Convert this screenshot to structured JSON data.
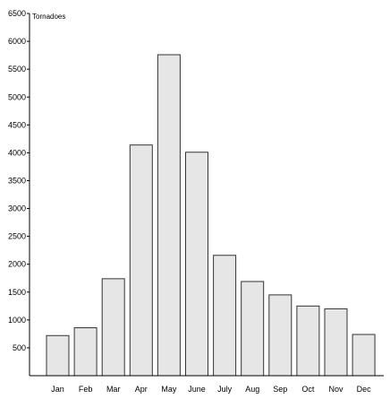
{
  "chart_data": {
    "type": "bar",
    "ylabel": "Tornadoes",
    "xlabel": "",
    "categories": [
      "Jan",
      "Feb",
      "Mar",
      "Apr",
      "May",
      "June",
      "July",
      "Aug",
      "Sep",
      "Oct",
      "Nov",
      "Dec"
    ],
    "values": [
      720,
      860,
      1740,
      4140,
      5760,
      4010,
      2160,
      1690,
      1450,
      1250,
      1200,
      740
    ],
    "ylim": [
      0,
      6500
    ],
    "yticks": [
      500,
      1000,
      1500,
      2000,
      2500,
      3000,
      3500,
      4000,
      4500,
      5000,
      5500,
      6000,
      6500
    ],
    "grid": false,
    "colors": {
      "bar_fill": "#e6e6e6",
      "bar_stroke": "#333333",
      "axis": "#000000"
    }
  }
}
